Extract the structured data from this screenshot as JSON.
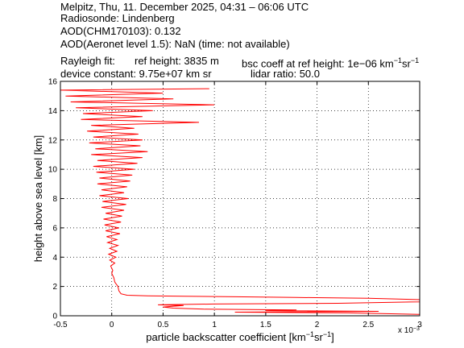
{
  "header": {
    "line1": "Melpitz, Thu, 11. December 2025, 04:31 – 06:06 UTC",
    "line2": "Radiosonde: Lindenberg",
    "line3": "AOD(CHM170103): 0.132",
    "line4": "AOD(Aeronet level 1.5): NaN   (time: not available)",
    "rayleigh_label": "Rayleigh fit:",
    "ref_height": "ref height: 3835 m",
    "bsc_coeff_prefix": "bsc coeff at ref height: 1e−06 km",
    "bsc_coeff_sup1": "−1",
    "bsc_coeff_mid": "sr",
    "bsc_coeff_sup2": "−1",
    "device_constant": "device constant: 9.75e+07 km sr",
    "lidar_ratio": "lidar ratio: 50.0"
  },
  "chart_data": {
    "type": "line",
    "xlabel_prefix": "particle backscatter coefficient [km",
    "xlabel_sup1": "−1",
    "xlabel_mid": "sr",
    "xlabel_sup2": "−1",
    "xlabel_suffix": "]",
    "ylabel": "height above sea level [km]",
    "x_exponent_label": "x 10",
    "x_exponent_power": "−3",
    "xlim": [
      -0.5,
      3
    ],
    "ylim": [
      0,
      16
    ],
    "x_ticks": [
      -0.5,
      0,
      0.5,
      1,
      1.5,
      2,
      2.5,
      3
    ],
    "x_tick_labels": [
      "-0.5",
      "0",
      "0.5",
      "1",
      "1.5",
      "2",
      "2.5",
      "3"
    ],
    "y_ticks": [
      0,
      2,
      4,
      6,
      8,
      10,
      12,
      14,
      16
    ],
    "y_tick_labels": [
      "0",
      "2",
      "4",
      "6",
      "8",
      "10",
      "12",
      "14",
      "16"
    ],
    "grid": true,
    "series": [
      {
        "color": "#ff0000",
        "points": [
          [
            3.0,
            0.1
          ],
          [
            2.3,
            0.2
          ],
          [
            1.2,
            0.25
          ],
          [
            2.6,
            0.3
          ],
          [
            1.5,
            0.35
          ],
          [
            1.8,
            0.4
          ],
          [
            0.9,
            0.45
          ],
          [
            0.6,
            0.52
          ],
          [
            0.5,
            0.6
          ],
          [
            0.7,
            0.7
          ],
          [
            0.45,
            0.75
          ],
          [
            1.0,
            0.8
          ],
          [
            2.2,
            0.85
          ],
          [
            3.0,
            0.95
          ],
          [
            3.0,
            1.1
          ],
          [
            2.5,
            1.2
          ],
          [
            1.8,
            1.25
          ],
          [
            1.2,
            1.3
          ],
          [
            0.7,
            1.33
          ],
          [
            0.35,
            1.36
          ],
          [
            0.15,
            1.4
          ],
          [
            0.09,
            1.5
          ],
          [
            0.07,
            1.7
          ],
          [
            0.06,
            2.0
          ],
          [
            0.03,
            2.3
          ],
          [
            0.02,
            2.6
          ],
          [
            0.0,
            2.9
          ],
          [
            0.01,
            3.1
          ],
          [
            -0.01,
            3.4
          ],
          [
            0.03,
            3.6
          ],
          [
            -0.02,
            3.8
          ],
          [
            0.04,
            4.0
          ],
          [
            -0.03,
            4.2
          ],
          [
            0.05,
            4.4
          ],
          [
            -0.02,
            4.6
          ],
          [
            0.06,
            4.8
          ],
          [
            -0.04,
            5.0
          ],
          [
            0.05,
            5.2
          ],
          [
            -0.05,
            5.4
          ],
          [
            0.08,
            5.6
          ],
          [
            -0.06,
            5.8
          ],
          [
            0.07,
            6.0
          ],
          [
            -0.07,
            6.2
          ],
          [
            0.09,
            6.4
          ],
          [
            -0.08,
            6.6
          ],
          [
            0.1,
            6.8
          ],
          [
            -0.06,
            7.0
          ],
          [
            0.12,
            7.2
          ],
          [
            -0.1,
            7.4
          ],
          [
            0.14,
            7.6
          ],
          [
            -0.09,
            7.8
          ],
          [
            0.16,
            8.0
          ],
          [
            -0.12,
            8.2
          ],
          [
            0.12,
            8.4
          ],
          [
            -0.1,
            8.6
          ],
          [
            0.15,
            8.8
          ],
          [
            -0.14,
            9.0
          ],
          [
            0.18,
            9.2
          ],
          [
            -0.12,
            9.4
          ],
          [
            0.2,
            9.6
          ],
          [
            -0.15,
            9.8
          ],
          [
            0.22,
            10.0
          ],
          [
            -0.18,
            10.2
          ],
          [
            0.25,
            10.4
          ],
          [
            -0.14,
            10.6
          ],
          [
            0.3,
            10.8
          ],
          [
            -0.2,
            11.0
          ],
          [
            0.35,
            11.2
          ],
          [
            -0.16,
            11.4
          ],
          [
            0.28,
            11.6
          ],
          [
            -0.22,
            11.8
          ],
          [
            0.3,
            12.0
          ],
          [
            -0.18,
            12.2
          ],
          [
            0.26,
            12.4
          ],
          [
            -0.24,
            12.6
          ],
          [
            0.22,
            12.8
          ],
          [
            -0.2,
            13.0
          ],
          [
            0.85,
            13.2
          ],
          [
            -0.3,
            13.4
          ],
          [
            0.3,
            13.6
          ],
          [
            -0.28,
            13.8
          ],
          [
            0.4,
            14.0
          ],
          [
            -0.35,
            14.2
          ],
          [
            1.0,
            14.4
          ],
          [
            -0.4,
            14.6
          ],
          [
            0.6,
            14.8
          ],
          [
            -0.45,
            15.0
          ],
          [
            0.5,
            15.2
          ],
          [
            -0.5,
            15.4
          ],
          [
            0.95,
            15.5
          ]
        ]
      }
    ]
  }
}
